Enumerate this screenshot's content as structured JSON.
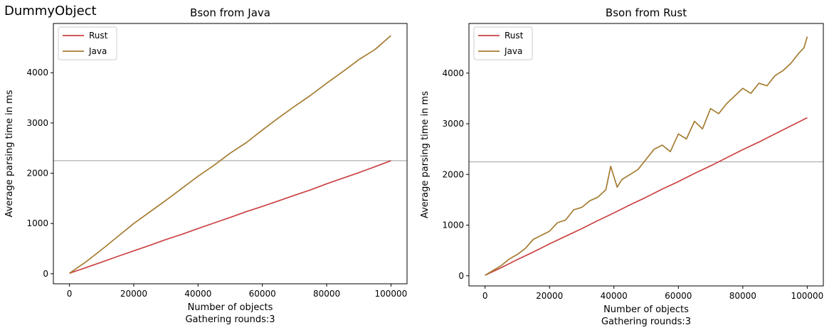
{
  "figure": {
    "suptitle": "DummyObject"
  },
  "chart_data": [
    {
      "type": "line",
      "title": "Bson from Java",
      "xlabel": "Number of objects",
      "xlabel2": "Gathering rounds:3",
      "ylabel": "Average parsing time in ms",
      "xlim": [
        -5000,
        105000
      ],
      "ylim": [
        -200,
        4980
      ],
      "xticks": [
        0,
        20000,
        40000,
        60000,
        80000,
        100000
      ],
      "yticks": [
        0,
        1000,
        2000,
        3000,
        4000
      ],
      "grid": false,
      "legend_position": "top-left",
      "hline": {
        "y": 2250,
        "color": "#b0b0b0"
      },
      "series": [
        {
          "name": "Rust",
          "color": "#cc4343",
          "x": [
            0,
            5000,
            10000,
            15000,
            20000,
            25000,
            30000,
            35000,
            40000,
            45000,
            50000,
            55000,
            60000,
            65000,
            70000,
            75000,
            80000,
            85000,
            90000,
            95000,
            100000
          ],
          "y": [
            10,
            120,
            230,
            345,
            455,
            565,
            680,
            785,
            900,
            1010,
            1120,
            1235,
            1340,
            1450,
            1560,
            1670,
            1790,
            1900,
            2010,
            2130,
            2250
          ]
        },
        {
          "name": "Java",
          "color": "#a57c31",
          "x": [
            0,
            5000,
            10000,
            15000,
            20000,
            25000,
            30000,
            35000,
            40000,
            45000,
            50000,
            55000,
            60000,
            65000,
            70000,
            75000,
            80000,
            85000,
            90000,
            95000,
            100000
          ],
          "y": [
            10,
            230,
            480,
            740,
            1000,
            1230,
            1460,
            1700,
            1940,
            2160,
            2400,
            2610,
            2860,
            3100,
            3330,
            3550,
            3790,
            4020,
            4260,
            4460,
            4740
          ]
        }
      ]
    },
    {
      "type": "line",
      "title": "Bson from Rust",
      "xlabel": "Number of objects",
      "xlabel2": "Gathering rounds:3",
      "ylabel": "Average parsing time in ms",
      "xlim": [
        -5000,
        105000
      ],
      "ylim": [
        -200,
        4980
      ],
      "xticks": [
        0,
        20000,
        40000,
        60000,
        80000,
        100000
      ],
      "yticks": [
        0,
        1000,
        2000,
        3000,
        4000
      ],
      "grid": false,
      "legend_position": "top-left",
      "hline": {
        "y": 2250,
        "color": "#b0b0b0"
      },
      "series": [
        {
          "name": "Rust",
          "color": "#cc4343",
          "x": [
            0,
            5000,
            10000,
            15000,
            20000,
            25000,
            30000,
            35000,
            40000,
            45000,
            50000,
            55000,
            60000,
            65000,
            70000,
            75000,
            80000,
            85000,
            90000,
            95000,
            100000
          ],
          "y": [
            10,
            160,
            320,
            470,
            630,
            780,
            930,
            1090,
            1240,
            1400,
            1550,
            1710,
            1860,
            2020,
            2170,
            2330,
            2490,
            2640,
            2800,
            2960,
            3120
          ]
        },
        {
          "name": "Java",
          "color": "#a57c31",
          "x": [
            0,
            5000,
            7500,
            10000,
            12500,
            15000,
            17500,
            20000,
            22500,
            25000,
            27500,
            30000,
            32500,
            35000,
            37500,
            39000,
            41000,
            42500,
            45000,
            47500,
            50000,
            52500,
            55000,
            57500,
            60000,
            62500,
            65000,
            67500,
            70000,
            72500,
            75000,
            77500,
            80000,
            82500,
            85000,
            87500,
            90000,
            92500,
            95000,
            97500,
            99000,
            100000
          ],
          "y": [
            10,
            200,
            330,
            420,
            540,
            720,
            800,
            880,
            1050,
            1100,
            1300,
            1350,
            1480,
            1550,
            1700,
            2160,
            1750,
            1900,
            2000,
            2100,
            2300,
            2500,
            2580,
            2450,
            2800,
            2700,
            3050,
            2900,
            3300,
            3200,
            3400,
            3550,
            3700,
            3600,
            3800,
            3750,
            3950,
            4050,
            4200,
            4400,
            4500,
            4720
          ]
        }
      ]
    }
  ]
}
